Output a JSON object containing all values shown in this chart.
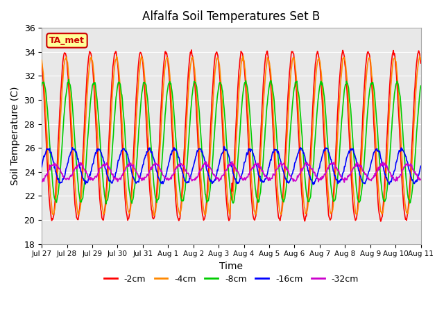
{
  "title": "Alfalfa Soil Temperatures Set B",
  "xlabel": "Time",
  "ylabel": "Soil Temperature (C)",
  "ylim": [
    18,
    36
  ],
  "yticks": [
    18,
    20,
    22,
    24,
    26,
    28,
    30,
    32,
    34,
    36
  ],
  "colors": {
    "-2cm": "#FF0000",
    "-4cm": "#FF8800",
    "-8cm": "#00CC00",
    "-16cm": "#0000FF",
    "-32cm": "#CC00CC"
  },
  "legend_label": "TA_met",
  "legend_box_color": "#FFFF99",
  "legend_box_edge": "#CC0000",
  "background_color": "#E8E8E8",
  "tick_labels": [
    "Jul 27",
    "Jul 28",
    "Jul 29",
    "Jul 30",
    "Jul 31",
    "Aug 1",
    "Aug 2",
    "Aug 3",
    "Aug 4",
    "Aug 5",
    "Aug 6",
    "Aug 7",
    "Aug 8",
    "Aug 9",
    "Aug 10",
    "Aug 11"
  ],
  "n_points_per_day": 48,
  "n_days": 15
}
